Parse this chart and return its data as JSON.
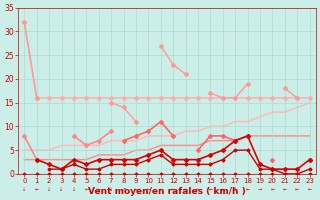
{
  "x": [
    0,
    1,
    2,
    3,
    4,
    5,
    6,
    7,
    8,
    9,
    10,
    11,
    12,
    13,
    14,
    15,
    16,
    17,
    18,
    19,
    20,
    21,
    22,
    23
  ],
  "series": [
    {
      "name": "rafales_top",
      "color": "#ffaaaa",
      "linewidth": 1.0,
      "marker": "D",
      "markersize": 2.0,
      "y": [
        32,
        16,
        16,
        16,
        16,
        16,
        16,
        16,
        16,
        16,
        16,
        16,
        16,
        16,
        16,
        16,
        16,
        16,
        16,
        16,
        16,
        16,
        16,
        16
      ]
    },
    {
      "name": "rafales_peak",
      "color": "#ff9999",
      "linewidth": 1.0,
      "marker": "D",
      "markersize": 2.0,
      "y": [
        32,
        16,
        null,
        null,
        null,
        null,
        null,
        15,
        14,
        11,
        null,
        27,
        23,
        21,
        null,
        17,
        16,
        16,
        19,
        null,
        null,
        18,
        16,
        null
      ]
    },
    {
      "name": "medium_pink",
      "color": "#ff8888",
      "linewidth": 1.2,
      "marker": "D",
      "markersize": 2.0,
      "y": [
        8,
        3,
        null,
        null,
        8,
        6,
        7,
        9,
        null,
        null,
        null,
        null,
        null,
        null,
        null,
        null,
        null,
        null,
        null,
        null,
        null,
        null,
        null,
        null
      ]
    },
    {
      "name": "medium_main",
      "color": "#ff6666",
      "linewidth": 1.2,
      "marker": "D",
      "markersize": 2.0,
      "y": [
        null,
        null,
        null,
        null,
        null,
        null,
        null,
        null,
        7,
        8,
        9,
        11,
        8,
        null,
        5,
        8,
        8,
        7,
        8,
        null,
        3,
        null,
        null,
        3
      ]
    },
    {
      "name": "trend_light",
      "color": "#ffbbbb",
      "linewidth": 1.2,
      "marker": null,
      "markersize": 0,
      "y": [
        5,
        5,
        5,
        6,
        6,
        6,
        6,
        7,
        7,
        7,
        8,
        8,
        8,
        9,
        9,
        10,
        10,
        11,
        11,
        12,
        13,
        13,
        14,
        15
      ]
    },
    {
      "name": "trend_mid",
      "color": "#ff8888",
      "linewidth": 1.0,
      "marker": null,
      "markersize": 0,
      "y": [
        3,
        3,
        3,
        3,
        3,
        3,
        4,
        4,
        4,
        5,
        5,
        6,
        6,
        6,
        6,
        7,
        7,
        7,
        8,
        8,
        8,
        8,
        8,
        8
      ]
    },
    {
      "name": "dark_main",
      "color": "#dd0000",
      "linewidth": 1.2,
      "marker": "D",
      "markersize": 2.0,
      "y": [
        null,
        3,
        2,
        1,
        3,
        2,
        3,
        3,
        3,
        3,
        4,
        5,
        3,
        3,
        3,
        4,
        5,
        7,
        8,
        2,
        1,
        1,
        1,
        3
      ]
    },
    {
      "name": "dark_low",
      "color": "#cc0000",
      "linewidth": 1.0,
      "marker": "D",
      "markersize": 1.5,
      "y": [
        null,
        null,
        1,
        1,
        2,
        1,
        1,
        2,
        2,
        2,
        3,
        4,
        2,
        2,
        2,
        2,
        3,
        5,
        5,
        1,
        1,
        0,
        0,
        1
      ]
    },
    {
      "name": "zero_line",
      "color": "#cc0000",
      "linewidth": 0.8,
      "marker": "D",
      "markersize": 1.5,
      "y": [
        0,
        0,
        0,
        0,
        0,
        0,
        0,
        0,
        0,
        0,
        0,
        0,
        0,
        0,
        0,
        0,
        0,
        0,
        0,
        0,
        0,
        0,
        0,
        0
      ]
    }
  ],
  "arrow_symbols": [
    "↓",
    "←",
    "↓",
    "↓",
    "↓",
    "←",
    "←",
    "↓",
    "↗",
    "←",
    "←",
    "←",
    "←",
    "←",
    "←",
    "←",
    "←",
    "↑",
    "←",
    "→",
    "←",
    "←",
    "←",
    "←"
  ],
  "xlabel": "Vent moyen/en rafales ( km/h )",
  "xlim": [
    -0.5,
    23.5
  ],
  "ylim": [
    0,
    35
  ],
  "yticks": [
    0,
    5,
    10,
    15,
    20,
    25,
    30,
    35
  ],
  "xticks": [
    0,
    1,
    2,
    3,
    4,
    5,
    6,
    7,
    8,
    9,
    10,
    11,
    12,
    13,
    14,
    15,
    16,
    17,
    18,
    19,
    20,
    21,
    22,
    23
  ],
  "bg_color": "#cceee8",
  "grid_color": "#aaddcc",
  "text_color": "#cc0000",
  "xlabel_color": "#cc0000",
  "tick_color": "#cc0000"
}
